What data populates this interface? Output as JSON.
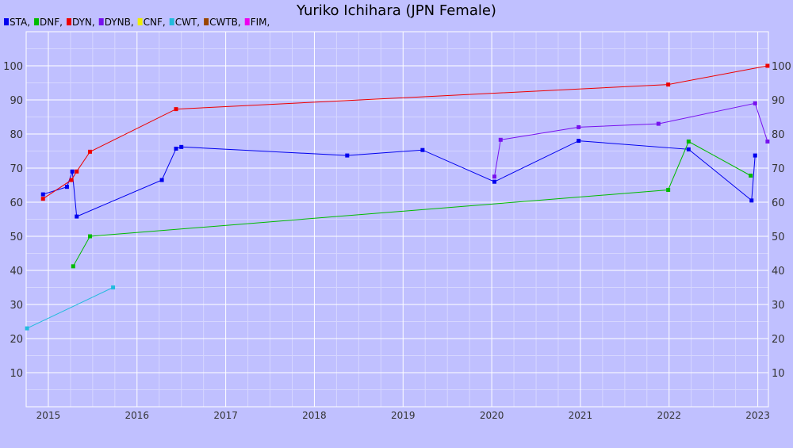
{
  "chart_data": {
    "type": "line",
    "title": "Yuriko Ichihara (JPN Female)",
    "xlabel": "",
    "ylabel": "",
    "xlim": [
      2014.75,
      2023.12
    ],
    "ylim": [
      0,
      110
    ],
    "y_ticks": [
      10,
      20,
      30,
      40,
      50,
      60,
      70,
      80,
      90,
      100
    ],
    "x_ticks": [
      2015,
      2016,
      2017,
      2018,
      2019,
      2020,
      2021,
      2022,
      2023
    ],
    "x_tick_labels": [
      "2015",
      "2016",
      "2017",
      "2018",
      "2019",
      "2020",
      "2021",
      "2022",
      "2023"
    ],
    "grid": true,
    "legend_position": "top-left",
    "legend": [
      {
        "label": "STA,",
        "color": "#0000ee"
      },
      {
        "label": "DNF,",
        "color": "#00bb00"
      },
      {
        "label": "DYN,",
        "color": "#ee0000"
      },
      {
        "label": "DYNB,",
        "color": "#7711ee"
      },
      {
        "label": "CNF,",
        "color": "#eeee00"
      },
      {
        "label": "CWT,",
        "color": "#22bbdd"
      },
      {
        "label": "CWTB,",
        "color": "#994400"
      },
      {
        "label": "FIM,",
        "color": "#ee00ee"
      }
    ],
    "series": [
      {
        "name": "STA",
        "color": "#0000ee",
        "points": [
          [
            2014.94,
            62.3
          ],
          [
            2015.21,
            64.5
          ],
          [
            2015.27,
            69.0
          ],
          [
            2015.32,
            55.8
          ],
          [
            2016.28,
            66.5
          ],
          [
            2016.44,
            75.7
          ],
          [
            2016.5,
            76.2
          ],
          [
            2018.37,
            73.7
          ],
          [
            2019.22,
            75.3
          ],
          [
            2020.03,
            66.0
          ],
          [
            2020.98,
            78.0
          ],
          [
            2022.22,
            75.5
          ],
          [
            2022.93,
            60.5
          ],
          [
            2022.97,
            73.7
          ]
        ]
      },
      {
        "name": "DNF",
        "color": "#00bb00",
        "points": [
          [
            2015.28,
            41.2
          ],
          [
            2015.47,
            50.0
          ],
          [
            2021.99,
            63.6
          ],
          [
            2022.22,
            77.8
          ],
          [
            2022.92,
            67.8
          ]
        ]
      },
      {
        "name": "DYN",
        "color": "#ee0000",
        "points": [
          [
            2014.94,
            61.0
          ],
          [
            2015.26,
            66.5
          ],
          [
            2015.32,
            69.0
          ],
          [
            2015.47,
            74.8
          ],
          [
            2016.44,
            87.3
          ],
          [
            2021.99,
            94.5
          ],
          [
            2023.11,
            100.0
          ]
        ]
      },
      {
        "name": "DYNB",
        "color": "#7711ee",
        "points": [
          [
            2020.03,
            67.5
          ],
          [
            2020.1,
            78.3
          ],
          [
            2020.98,
            82.0
          ],
          [
            2021.88,
            83.0
          ],
          [
            2022.97,
            89.0
          ],
          [
            2023.11,
            77.8
          ]
        ]
      },
      {
        "name": "CWT",
        "color": "#22bbdd",
        "points": [
          [
            2014.76,
            23.0
          ],
          [
            2015.73,
            35.0
          ]
        ]
      }
    ]
  }
}
